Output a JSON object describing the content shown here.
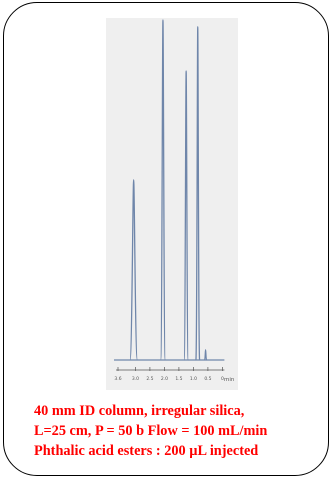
{
  "chart_data": {
    "type": "line",
    "title": "",
    "xlabel": "min",
    "ylabel": "",
    "x_direction": "decreasing",
    "xlim": [
      3.6,
      -0.4
    ],
    "ylim": [
      0,
      100
    ],
    "x_tick_labels": [
      "3.6",
      "3.0",
      "2.5",
      "2.0",
      "1.5",
      "1.0",
      "0.5",
      "0"
    ],
    "x_ticks": [
      3.6,
      3.0,
      2.5,
      2.0,
      1.5,
      1.0,
      0.5,
      0
    ],
    "grid": false,
    "legend": "none",
    "line_color": "#6f86aa",
    "peaks": [
      {
        "retention_min": 3.06,
        "height": 53,
        "width_min": 0.08
      },
      {
        "retention_min": 2.05,
        "height": 100,
        "width_min": 0.05
      },
      {
        "retention_min": 1.25,
        "height": 85,
        "width_min": 0.045
      },
      {
        "retention_min": 0.85,
        "height": 98,
        "width_min": 0.04
      },
      {
        "retention_min": 0.58,
        "height": 3,
        "width_min": 0.02
      }
    ]
  },
  "caption": {
    "line1": "40 mm ID column, irregular silica,",
    "line2": "L=25 cm, P = 50 b Flow = 100 mL/min",
    "line3": "Phthalic acid esters : 200 µL injected",
    "color": "#ff0000"
  }
}
